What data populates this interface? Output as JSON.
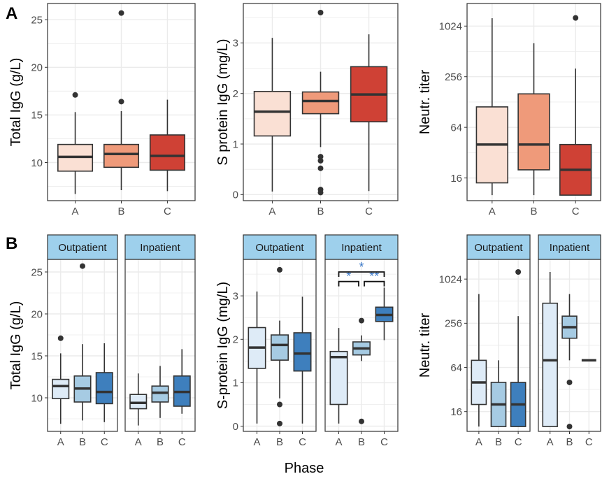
{
  "figure": {
    "panel_letters": [
      "A",
      "B"
    ],
    "shared_xlabel": "Phase"
  },
  "colors": {
    "reds": [
      "#fae0d4",
      "#ef9a7a",
      "#cf4135"
    ],
    "blues": [
      "#deebf7",
      "#a6cbe3",
      "#3e7fbd"
    ],
    "strip_fill": "#9ed0ec",
    "significance": "#3a78c9",
    "box_outline": "#333333",
    "grid": "#ebebeb"
  },
  "chart_data": [
    {
      "id": "A-total-igg",
      "type": "box",
      "ylabel": "Total IgG (g/L)",
      "scale": "linear",
      "ylim": [
        6,
        26.7
      ],
      "yticks": [
        10,
        15,
        20,
        25
      ],
      "ytick_labels": [
        "10",
        "15",
        "20",
        "25"
      ],
      "grid": true,
      "facets": [
        {
          "label": "",
          "categories": [
            "A",
            "B",
            "C"
          ],
          "palette": "reds",
          "boxes": [
            {
              "q1": 9.1,
              "median": 10.6,
              "q3": 11.9,
              "whisker_low": 6.7,
              "whisker_high": 15.3,
              "outliers": [
                17.1
              ]
            },
            {
              "q1": 9.5,
              "median": 10.9,
              "q3": 11.9,
              "whisker_low": 7.1,
              "whisker_high": 15.4,
              "outliers": [
                16.4,
                25.7
              ]
            },
            {
              "q1": 9.2,
              "median": 10.7,
              "q3": 12.9,
              "whisker_low": 7.0,
              "whisker_high": 16.6,
              "outliers": []
            }
          ]
        }
      ]
    },
    {
      "id": "A-s-protein-igg",
      "type": "box",
      "ylabel": "S protein IgG (mg/L)",
      "scale": "linear",
      "ylim": [
        -0.12,
        3.78
      ],
      "yticks": [
        0,
        1,
        2,
        3
      ],
      "ytick_labels": [
        "0",
        "1",
        "2",
        "3"
      ],
      "grid": true,
      "facets": [
        {
          "label": "",
          "categories": [
            "A",
            "B",
            "C"
          ],
          "palette": "reds",
          "boxes": [
            {
              "q1": 1.16,
              "median": 1.64,
              "q3": 2.04,
              "whisker_low": 0.06,
              "whisker_high": 3.1,
              "outliers": []
            },
            {
              "q1": 1.6,
              "median": 1.85,
              "q3": 2.03,
              "whisker_low": 0.94,
              "whisker_high": 2.43,
              "outliers": [
                0.04,
                0.1,
                0.52,
                0.67,
                0.75,
                3.6
              ]
            },
            {
              "q1": 1.44,
              "median": 1.98,
              "q3": 2.53,
              "whisker_low": 0.07,
              "whisker_high": 3.17,
              "outliers": []
            }
          ]
        }
      ]
    },
    {
      "id": "A-neutr-titer",
      "type": "box",
      "ylabel": "Neutr. titer",
      "scale": "log2",
      "ylim": [
        8.6,
        1900
      ],
      "yticks": [
        16,
        64,
        256,
        1024
      ],
      "ytick_labels": [
        "16",
        "64",
        "256",
        "1024"
      ],
      "grid": true,
      "facets": [
        {
          "label": "",
          "categories": [
            "A",
            "B",
            "C"
          ],
          "palette": "reds",
          "boxes": [
            {
              "q1": 14,
              "median": 40,
              "q3": 112,
              "whisker_low": 10,
              "whisker_high": 1270,
              "outliers": []
            },
            {
              "q1": 20,
              "median": 40,
              "q3": 160,
              "whisker_low": 10,
              "whisker_high": 640,
              "outliers": []
            },
            {
              "q1": 10,
              "median": 20,
              "q3": 40,
              "whisker_low": 10,
              "whisker_high": 320,
              "outliers": [
                1280
              ]
            }
          ]
        }
      ]
    },
    {
      "id": "B-total-igg",
      "type": "box",
      "ylabel": "Total IgG (g/L)",
      "scale": "linear",
      "ylim": [
        6,
        26.5
      ],
      "yticks": [
        10,
        15,
        20,
        25
      ],
      "ytick_labels": [
        "10",
        "15",
        "20",
        "25"
      ],
      "grid": true,
      "facets": [
        {
          "label": "Outpatient",
          "categories": [
            "A",
            "B",
            "C"
          ],
          "palette": "blues",
          "boxes": [
            {
              "q1": 9.9,
              "median": 11.4,
              "q3": 12.2,
              "whisker_low": 6.9,
              "whisker_high": 15.3,
              "outliers": [
                17.1
              ]
            },
            {
              "q1": 9.5,
              "median": 11.1,
              "q3": 12.6,
              "whisker_low": 7.3,
              "whisker_high": 16.4,
              "outliers": [
                25.7
              ]
            },
            {
              "q1": 9.3,
              "median": 10.7,
              "q3": 13.0,
              "whisker_low": 7.1,
              "whisker_high": 16.5,
              "outliers": []
            }
          ]
        },
        {
          "label": "Inpatient",
          "categories": [
            "A",
            "B",
            "C"
          ],
          "palette": "blues",
          "boxes": [
            {
              "q1": 8.7,
              "median": 9.4,
              "q3": 10.4,
              "whisker_low": 6.7,
              "whisker_high": 12.9,
              "outliers": []
            },
            {
              "q1": 9.5,
              "median": 10.6,
              "q3": 11.4,
              "whisker_low": 7.6,
              "whisker_high": 13.8,
              "outliers": []
            },
            {
              "q1": 9.0,
              "median": 10.7,
              "q3": 12.6,
              "whisker_low": 8.1,
              "whisker_high": 15.8,
              "outliers": []
            }
          ]
        }
      ]
    },
    {
      "id": "B-s-protein-igg",
      "type": "box",
      "ylabel": "S-protein IgG (mg/L)",
      "scale": "linear",
      "ylim": [
        -0.12,
        3.84
      ],
      "yticks": [
        0,
        1,
        2,
        3
      ],
      "ytick_labels": [
        "0",
        "1",
        "2",
        "3"
      ],
      "grid": true,
      "facets": [
        {
          "label": "Outpatient",
          "categories": [
            "A",
            "B",
            "C"
          ],
          "palette": "blues",
          "boxes": [
            {
              "q1": 1.33,
              "median": 1.81,
              "q3": 2.27,
              "whisker_low": 0.06,
              "whisker_high": 3.1,
              "outliers": []
            },
            {
              "q1": 1.52,
              "median": 1.87,
              "q3": 2.1,
              "whisker_low": 0.64,
              "whisker_high": 2.43,
              "outliers": [
                0.06,
                0.5,
                3.6
              ]
            },
            {
              "q1": 1.27,
              "median": 1.67,
              "q3": 2.15,
              "whisker_low": 0.06,
              "whisker_high": 2.98,
              "outliers": []
            }
          ]
        },
        {
          "label": "Inpatient",
          "categories": [
            "A",
            "B",
            "C"
          ],
          "palette": "blues",
          "boxes": [
            {
              "q1": 0.5,
              "median": 1.59,
              "q3": 1.72,
              "whisker_low": 0.06,
              "whisker_high": 2.26,
              "outliers": []
            },
            {
              "q1": 1.64,
              "median": 1.79,
              "q3": 1.94,
              "whisker_low": 1.5,
              "whisker_high": 2.09,
              "outliers": [
                0.11,
                2.43
              ]
            },
            {
              "q1": 2.41,
              "median": 2.56,
              "q3": 2.74,
              "whisker_low": 1.98,
              "whisker_high": 3.19,
              "outliers": []
            }
          ],
          "significance": [
            {
              "from": "A",
              "to": "B",
              "label": "*",
              "y": 3.33
            },
            {
              "from": "B",
              "to": "C",
              "label": "**",
              "y": 3.33
            },
            {
              "from": "A",
              "to": "C",
              "label": "*",
              "y": 3.55
            }
          ]
        }
      ]
    },
    {
      "id": "B-neutr-titer",
      "type": "box",
      "ylabel": "Neutr. titer",
      "scale": "log2",
      "ylim": [
        8.6,
        1900
      ],
      "yticks": [
        16,
        64,
        256,
        1024
      ],
      "ytick_labels": [
        "16",
        "64",
        "256",
        "1024"
      ],
      "grid": true,
      "facets": [
        {
          "label": "Outpatient",
          "categories": [
            "A",
            "B",
            "C"
          ],
          "palette": "blues",
          "boxes": [
            {
              "q1": 20,
              "median": 40,
              "q3": 80,
              "whisker_low": 10,
              "whisker_high": 640,
              "outliers": []
            },
            {
              "q1": 10,
              "median": 20,
              "q3": 40,
              "whisker_low": 10,
              "whisker_high": 80,
              "outliers": []
            },
            {
              "q1": 10,
              "median": 20,
              "q3": 40,
              "whisker_low": 10,
              "whisker_high": 320,
              "outliers": [
                1280
              ]
            }
          ]
        },
        {
          "label": "Inpatient",
          "categories": [
            "A",
            "B",
            "C"
          ],
          "palette": "blues",
          "boxes": [
            {
              "q1": 10,
              "median": 80,
              "q3": 480,
              "whisker_low": 10,
              "whisker_high": 1280,
              "outliers": []
            },
            {
              "q1": 160,
              "median": 226,
              "q3": 320,
              "whisker_low": 80,
              "whisker_high": 640,
              "outliers": [
                10,
                40
              ]
            },
            {
              "q1": 80,
              "median": 80,
              "q3": 80,
              "whisker_low": 80,
              "whisker_high": 80,
              "outliers": []
            }
          ]
        }
      ]
    }
  ]
}
